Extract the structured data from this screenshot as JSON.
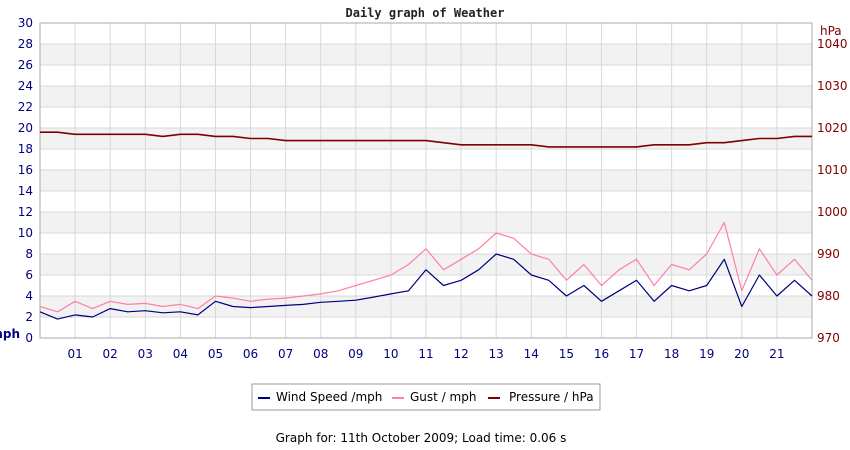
{
  "chart_data": {
    "type": "line",
    "title": "Daily graph of Weather",
    "y_left": {
      "unit": "mph",
      "ylim": [
        0,
        30
      ],
      "ticks": [
        "0",
        "2",
        "4",
        "6",
        "8",
        "10",
        "12",
        "14",
        "16",
        "18",
        "20",
        "22",
        "24",
        "26",
        "28",
        "30"
      ]
    },
    "y_right": {
      "unit": "hPa",
      "ylim": [
        970,
        1045
      ],
      "ticks": [
        "970",
        "980",
        "990",
        "1000",
        "1010",
        "1020",
        "1030",
        "1040"
      ]
    },
    "x": {
      "range_hours": [
        0,
        22
      ],
      "ticks": [
        "01",
        "02",
        "03",
        "04",
        "05",
        "06",
        "07",
        "08",
        "09",
        "10",
        "11",
        "12",
        "13",
        "14",
        "15",
        "16",
        "17",
        "18",
        "19",
        "20",
        "21"
      ]
    },
    "grid": true,
    "legend_position": "bottom",
    "series": [
      {
        "name": "Wind Speed /mph",
        "color": "#000080",
        "axis": "left",
        "x": [
          0,
          0.5,
          1,
          1.5,
          2,
          2.5,
          3,
          3.5,
          4,
          4.5,
          5,
          5.5,
          6,
          6.5,
          7,
          7.5,
          8,
          8.5,
          9,
          9.5,
          10,
          10.5,
          11,
          11.5,
          12,
          12.5,
          13,
          13.5,
          14,
          14.5,
          15,
          15.5,
          16,
          16.5,
          17,
          17.5,
          18,
          18.5,
          19,
          19.5,
          20,
          20.5,
          21,
          21.5,
          22
        ],
        "values": [
          2.5,
          1.8,
          2.2,
          2.0,
          2.8,
          2.5,
          2.6,
          2.4,
          2.5,
          2.2,
          3.5,
          3.0,
          2.9,
          3.0,
          3.1,
          3.2,
          3.4,
          3.5,
          3.6,
          3.9,
          4.2,
          4.5,
          6.5,
          5.0,
          5.5,
          6.5,
          8.0,
          7.5,
          6.0,
          5.5,
          4.0,
          5.0,
          3.5,
          4.5,
          5.5,
          3.5,
          5.0,
          4.5,
          5.0,
          7.5,
          3.0,
          6.0,
          4.0,
          5.5,
          4.0
        ]
      },
      {
        "name": "Gust / mph",
        "color": "#ff7fa6",
        "axis": "left",
        "x": [
          0,
          0.5,
          1,
          1.5,
          2,
          2.5,
          3,
          3.5,
          4,
          4.5,
          5,
          5.5,
          6,
          6.5,
          7,
          7.5,
          8,
          8.5,
          9,
          9.5,
          10,
          10.5,
          11,
          11.5,
          12,
          12.5,
          13,
          13.5,
          14,
          14.5,
          15,
          15.5,
          16,
          16.5,
          17,
          17.5,
          18,
          18.5,
          19,
          19.5,
          20,
          20.5,
          21,
          21.5,
          22
        ],
        "values": [
          3.0,
          2.5,
          3.5,
          2.8,
          3.5,
          3.2,
          3.3,
          3.0,
          3.2,
          2.8,
          4.0,
          3.8,
          3.5,
          3.7,
          3.8,
          4.0,
          4.2,
          4.5,
          5.0,
          5.5,
          6.0,
          7.0,
          8.5,
          6.5,
          7.5,
          8.5,
          10.0,
          9.5,
          8.0,
          7.5,
          5.5,
          7.0,
          5.0,
          6.5,
          7.5,
          5.0,
          7.0,
          6.5,
          8.0,
          11.0,
          4.5,
          8.5,
          6.0,
          7.5,
          5.5
        ]
      },
      {
        "name": "Pressure / hPa",
        "color": "#800000",
        "axis": "right",
        "x": [
          0,
          0.5,
          1,
          1.5,
          2,
          2.5,
          3,
          3.5,
          4,
          4.5,
          5,
          5.5,
          6,
          6.5,
          7,
          7.5,
          8,
          8.5,
          9,
          9.5,
          10,
          10.5,
          11,
          11.5,
          12,
          12.5,
          13,
          13.5,
          14,
          14.5,
          15,
          15.5,
          16,
          16.5,
          17,
          17.5,
          18,
          18.5,
          19,
          19.5,
          20,
          20.5,
          21,
          21.5,
          22
        ],
        "values": [
          1019,
          1019,
          1018.5,
          1018.5,
          1018.5,
          1018.5,
          1018.5,
          1018,
          1018.5,
          1018.5,
          1018,
          1018,
          1017.5,
          1017.5,
          1017,
          1017,
          1017,
          1017,
          1017,
          1017,
          1017,
          1017,
          1017,
          1016.5,
          1016,
          1016,
          1016,
          1016,
          1016,
          1015.5,
          1015.5,
          1015.5,
          1015.5,
          1015.5,
          1015.5,
          1016,
          1016,
          1016,
          1016.5,
          1016.5,
          1017,
          1017.5,
          1017.5,
          1018,
          1018
        ]
      }
    ]
  },
  "footer": {
    "text": "Graph for: 11th October 2009; Load time: 0.06 s"
  }
}
